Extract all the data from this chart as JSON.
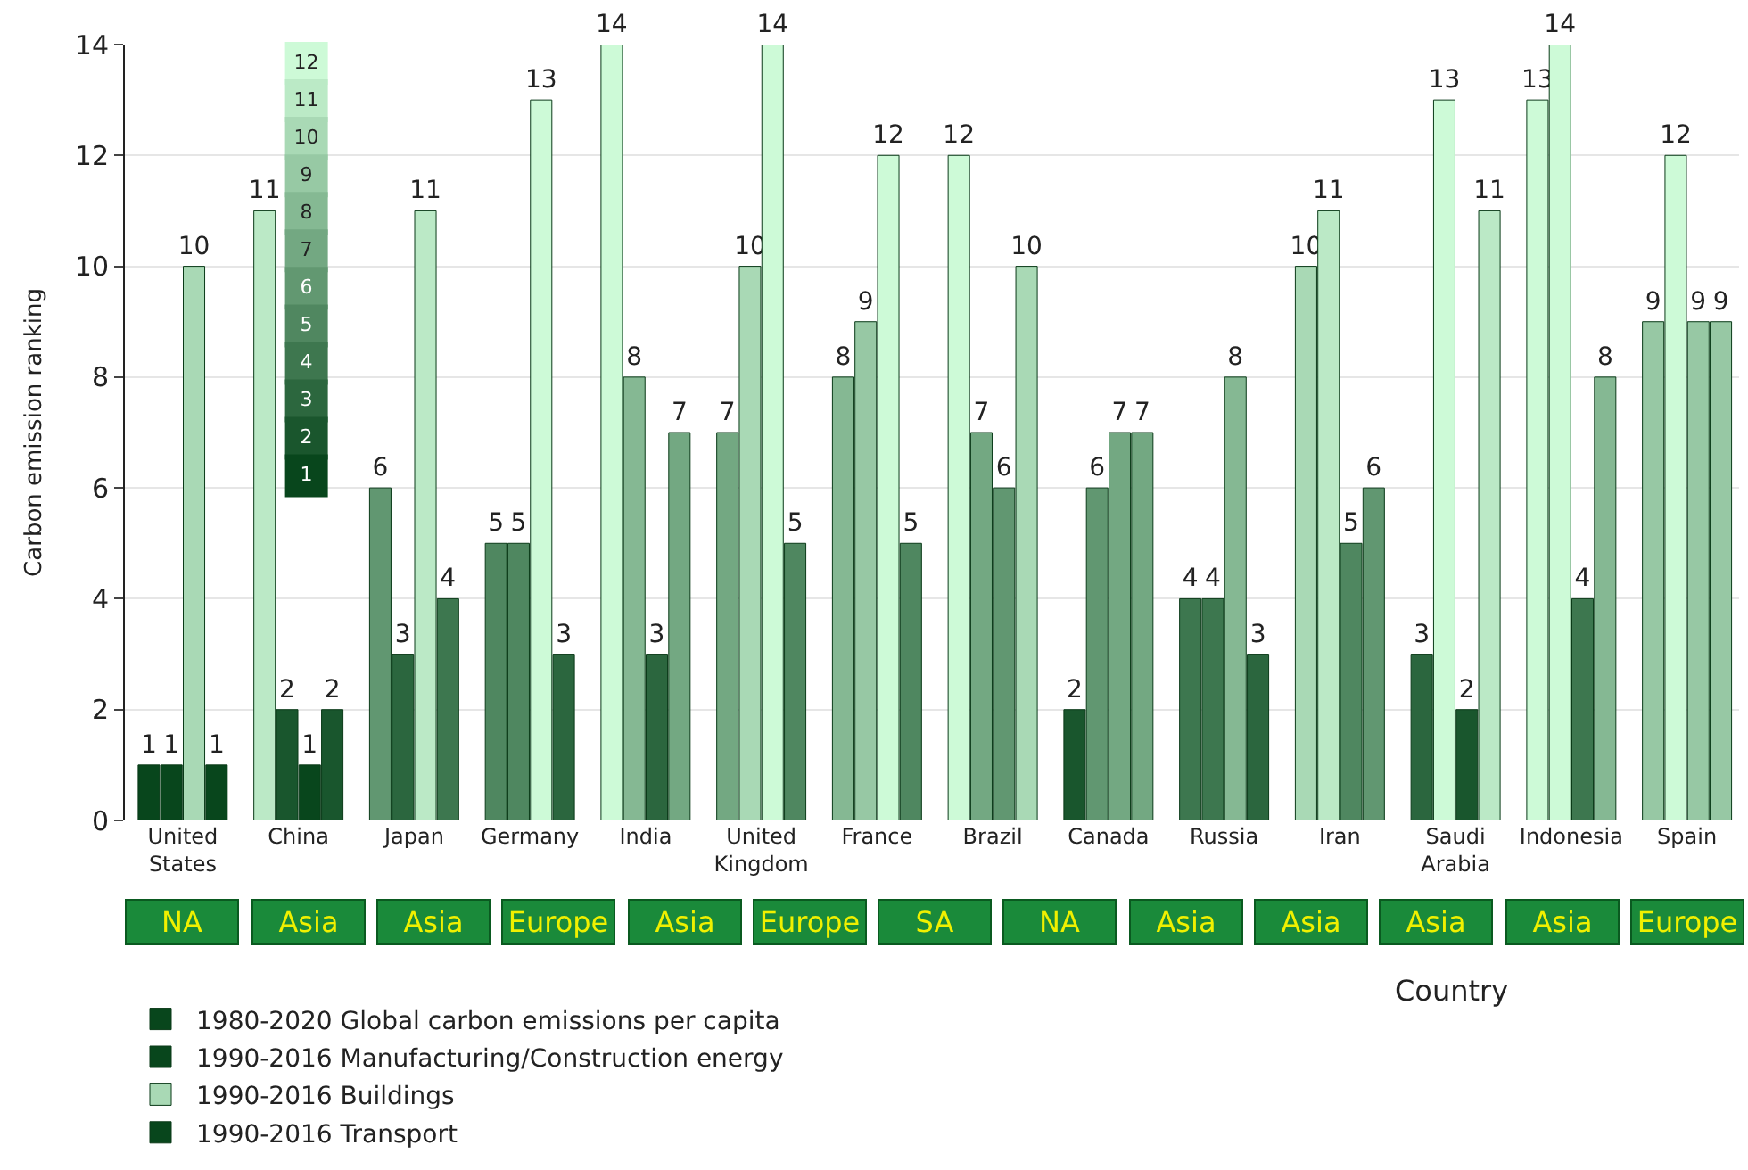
{
  "chart_data": [
    {
      "type": "bar",
      "xlabel": "Country",
      "ylabel": "Carbon emission ranking",
      "categories": [
        "United States",
        "China",
        "Japan",
        "Germany",
        "India",
        "United Kingdom",
        "France",
        "Brazil",
        "Canada",
        "Russia",
        "Iran",
        "Saudi Arabia",
        "Indonesia",
        "Spain"
      ],
      "series": [
        {
          "name": "1980-2020 Global carbon emissions per capita",
          "values": [
            1,
            11,
            6,
            5,
            14,
            7,
            8,
            12,
            2,
            4,
            10,
            3,
            13,
            9
          ],
          "colors": [
            "#08461c",
            "#bbe9c6",
            "#619771",
            "#4f8760",
            "#cdfad7",
            "#73a882",
            "#85b893",
            "#cdfad7",
            "#19562d",
            "#3d774f",
            "#a9d9b5",
            "#2b663e",
            "#cdfad7",
            "#97c8a4"
          ]
        },
        {
          "name": "1990-2016 Manufacturing/Construction energy",
          "values": [
            1,
            2,
            3,
            5,
            8,
            10,
            9,
            7,
            6,
            4,
            11,
            13,
            14,
            12
          ],
          "colors": [
            "#08461c",
            "#19562d",
            "#2b663e",
            "#4f8760",
            "#85b893",
            "#a9d9b5",
            "#97c8a4",
            "#73a882",
            "#619771",
            "#3d774f",
            "#bbe9c6",
            "#cdfad7",
            "#cdfad7",
            "#cdfad7"
          ]
        },
        {
          "name": "1990-2016 Buildings",
          "values": [
            10,
            1,
            11,
            13,
            3,
            14,
            12,
            6,
            7,
            8,
            5,
            2,
            4,
            9
          ],
          "colors": [
            "#a9d9b5",
            "#08461c",
            "#bbe9c6",
            "#cdfad7",
            "#2b663e",
            "#cdfad7",
            "#cdfad7",
            "#619771",
            "#73a882",
            "#85b893",
            "#4f8760",
            "#19562d",
            "#3d774f",
            "#97c8a4"
          ]
        },
        {
          "name": "1990-2016 Transport",
          "values": [
            1,
            2,
            4,
            3,
            7,
            5,
            5,
            10,
            7,
            3,
            6,
            11,
            8,
            9
          ],
          "colors": [
            "#08461c",
            "#19562d",
            "#3d774f",
            "#2b663e",
            "#73a882",
            "#4f8760",
            "#4f8760",
            "#a9d9b5",
            "#73a882",
            "#2b663e",
            "#619771",
            "#bbe9c6",
            "#85b893",
            "#97c8a4"
          ]
        }
      ],
      "ylim": [
        0,
        14
      ],
      "yticks": [
        0,
        2,
        4,
        6,
        8,
        10,
        12,
        14
      ],
      "grid": "y",
      "data_labels": true,
      "legend": "bottom",
      "annotations": [
        "NA",
        "Asia",
        "Asia",
        "Europe",
        "Asia",
        "Europe",
        "SA",
        "NA",
        "Asia",
        "Asia",
        "Asia",
        "Asia",
        "Europe"
      ]
    },
    {
      "type": "heatmap",
      "categories": [
        null
      ],
      "y_categories": [
        null,
        null,
        null,
        null,
        null,
        null,
        null,
        null,
        null,
        null,
        null,
        null
      ],
      "data_labels": true,
      "cells": [
        [
          12
        ],
        [
          11
        ],
        [
          10
        ],
        [
          9
        ],
        [
          8
        ],
        [
          7
        ],
        [
          6
        ],
        [
          5
        ],
        [
          4
        ],
        [
          3
        ],
        [
          2
        ],
        [
          1
        ]
      ]
    }
  ]
}
